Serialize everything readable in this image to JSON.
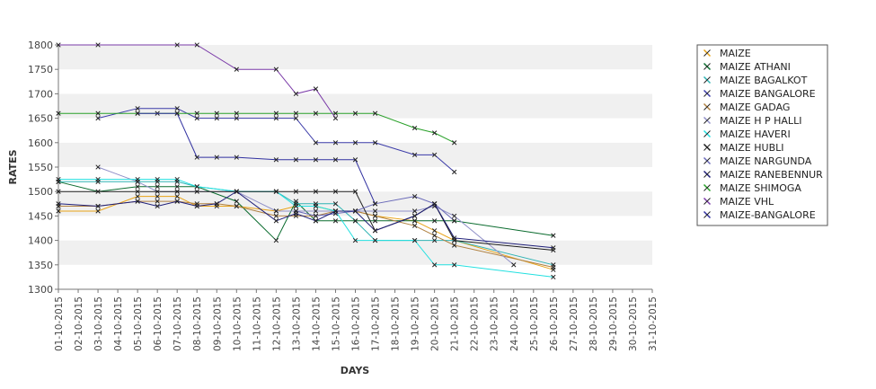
{
  "chart_data": {
    "type": "line",
    "title": "",
    "xlabel": "DAYS",
    "ylabel": "RATES",
    "ylim": [
      1300,
      1800
    ],
    "yticks": [
      1300,
      1350,
      1400,
      1450,
      1500,
      1550,
      1600,
      1650,
      1700,
      1750,
      1800
    ],
    "grid": "horizontal bands",
    "legend_position": "right",
    "categories": [
      "01-10-2015",
      "02-10-2015",
      "03-10-2015",
      "04-10-2015",
      "05-10-2015",
      "06-10-2015",
      "07-10-2015",
      "08-10-2015",
      "09-10-2015",
      "10-10-2015",
      "11-10-2015",
      "12-10-2015",
      "13-10-2015",
      "14-10-2015",
      "15-10-2015",
      "16-10-2015",
      "17-10-2015",
      "18-10-2015",
      "19-10-2015",
      "20-10-2015",
      "21-10-2015",
      "22-10-2015",
      "23-10-2015",
      "24-10-2015",
      "25-10-2015",
      "26-10-2015",
      "27-10-2015",
      "28-10-2015",
      "29-10-2015",
      "30-10-2015",
      "31-10-2015"
    ],
    "series": [
      {
        "name": "MAIZE",
        "color": "#e8a317",
        "points": [
          [
            1,
            1460
          ],
          [
            3,
            1460
          ],
          [
            5,
            1490
          ],
          [
            6,
            1490
          ],
          [
            7,
            1490
          ],
          [
            8,
            1470
          ],
          [
            9,
            1470
          ],
          [
            10,
            1470
          ],
          [
            12,
            1460
          ],
          [
            13,
            1470
          ],
          [
            14,
            1470
          ],
          [
            15,
            1460
          ],
          [
            16,
            1460
          ],
          [
            17,
            1450
          ],
          [
            19,
            1440
          ],
          [
            20,
            1420
          ],
          [
            21,
            1400
          ],
          [
            26,
            1340
          ]
        ]
      },
      {
        "name": "MAIZE ATHANI",
        "color": "#0a6b2e",
        "points": [
          [
            1,
            1520
          ],
          [
            3,
            1500
          ],
          [
            5,
            1510
          ],
          [
            6,
            1510
          ],
          [
            7,
            1510
          ],
          [
            8,
            1510
          ],
          [
            10,
            1480
          ],
          [
            12,
            1400
          ],
          [
            13,
            1480
          ],
          [
            14,
            1440
          ],
          [
            15,
            1440
          ],
          [
            16,
            1440
          ],
          [
            17,
            1440
          ],
          [
            19,
            1440
          ],
          [
            20,
            1440
          ],
          [
            21,
            1440
          ],
          [
            26,
            1410
          ]
        ]
      },
      {
        "name": "MAIZE BAGALKOT",
        "color": "#2fb3b3",
        "points": [
          [
            1,
            1520
          ],
          [
            3,
            1520
          ],
          [
            5,
            1520
          ],
          [
            6,
            1520
          ],
          [
            7,
            1520
          ],
          [
            8,
            1510
          ],
          [
            10,
            1500
          ],
          [
            12,
            1500
          ],
          [
            13,
            1475
          ],
          [
            14,
            1475
          ],
          [
            15,
            1475
          ],
          [
            16,
            1440
          ],
          [
            17,
            1400
          ],
          [
            19,
            1400
          ],
          [
            20,
            1400
          ],
          [
            21,
            1400
          ],
          [
            26,
            1350
          ]
        ]
      },
      {
        "name": "MAIZE BANGALORE",
        "color": "#3a3aa8",
        "points": [
          [
            3,
            1650
          ],
          [
            5,
            1670
          ],
          [
            7,
            1670
          ],
          [
            8,
            1650
          ],
          [
            9,
            1650
          ],
          [
            10,
            1650
          ],
          [
            12,
            1650
          ],
          [
            13,
            1650
          ],
          [
            14,
            1600
          ],
          [
            15,
            1600
          ],
          [
            16,
            1600
          ],
          [
            17,
            1600
          ],
          [
            19,
            1575
          ],
          [
            20,
            1575
          ],
          [
            21,
            1540
          ]
        ]
      },
      {
        "name": "MAIZE GADAG",
        "color": "#b08040",
        "points": [
          [
            1,
            1470
          ],
          [
            3,
            1470
          ],
          [
            5,
            1480
          ],
          [
            6,
            1480
          ],
          [
            7,
            1480
          ],
          [
            8,
            1475
          ],
          [
            9,
            1475
          ],
          [
            10,
            1470
          ],
          [
            12,
            1450
          ],
          [
            13,
            1450
          ],
          [
            14,
            1450
          ],
          [
            15,
            1460
          ],
          [
            16,
            1460
          ],
          [
            17,
            1450
          ],
          [
            19,
            1430
          ],
          [
            20,
            1410
          ],
          [
            21,
            1390
          ],
          [
            26,
            1345
          ]
        ]
      },
      {
        "name": "MAIZE H P HALLI",
        "color": "#9090c8",
        "points": [
          [
            3,
            1550
          ],
          [
            5,
            1520
          ],
          [
            6,
            1500
          ],
          [
            7,
            1500
          ],
          [
            8,
            1500
          ],
          [
            10,
            1500
          ],
          [
            12,
            1460
          ],
          [
            13,
            1460
          ],
          [
            14,
            1460
          ],
          [
            15,
            1460
          ],
          [
            16,
            1460
          ],
          [
            17,
            1460
          ],
          [
            19,
            1460
          ],
          [
            20,
            1470
          ],
          [
            21,
            1450
          ],
          [
            24,
            1350
          ]
        ]
      },
      {
        "name": "MAIZE HAVERI",
        "color": "#22e0e0",
        "points": [
          [
            1,
            1525
          ],
          [
            3,
            1525
          ],
          [
            5,
            1525
          ],
          [
            6,
            1525
          ],
          [
            7,
            1525
          ],
          [
            8,
            1510
          ],
          [
            10,
            1500
          ],
          [
            12,
            1500
          ],
          [
            13,
            1470
          ],
          [
            14,
            1470
          ],
          [
            15,
            1460
          ],
          [
            16,
            1400
          ],
          [
            17,
            1400
          ],
          [
            19,
            1400
          ],
          [
            20,
            1350
          ],
          [
            21,
            1350
          ],
          [
            26,
            1325
          ]
        ]
      },
      {
        "name": "MAIZE HUBLI",
        "color": "#1a1a1a",
        "points": [
          [
            1,
            1500
          ],
          [
            5,
            1500
          ],
          [
            7,
            1500
          ],
          [
            10,
            1500
          ],
          [
            12,
            1500
          ],
          [
            13,
            1500
          ],
          [
            14,
            1500
          ],
          [
            15,
            1500
          ],
          [
            16,
            1500
          ],
          [
            17,
            1420
          ],
          [
            19,
            1450
          ],
          [
            20,
            1475
          ],
          [
            21,
            1400
          ],
          [
            26,
            1380
          ]
        ]
      },
      {
        "name": "MAIZE NARGUNDA",
        "color": "#6868b8",
        "points": [
          [
            13,
            1460
          ],
          [
            14,
            1450
          ],
          [
            15,
            1455
          ],
          [
            16,
            1460
          ],
          [
            17,
            1475
          ],
          [
            19,
            1490
          ],
          [
            20,
            1475
          ],
          [
            21,
            1440
          ]
        ]
      },
      {
        "name": "MAIZE RANEBENNUR",
        "color": "#1e1e78",
        "points": [
          [
            1,
            1475
          ],
          [
            3,
            1470
          ],
          [
            5,
            1480
          ],
          [
            6,
            1470
          ],
          [
            7,
            1480
          ],
          [
            8,
            1470
          ],
          [
            9,
            1475
          ],
          [
            10,
            1500
          ],
          [
            12,
            1440
          ],
          [
            13,
            1455
          ],
          [
            14,
            1440
          ],
          [
            15,
            1460
          ],
          [
            16,
            1460
          ],
          [
            17,
            1420
          ],
          [
            19,
            1450
          ],
          [
            20,
            1475
          ],
          [
            21,
            1405
          ],
          [
            26,
            1385
          ]
        ]
      },
      {
        "name": "MAIZE SHIMOGA",
        "color": "#28a028",
        "points": [
          [
            1,
            1660
          ],
          [
            3,
            1660
          ],
          [
            5,
            1660
          ],
          [
            6,
            1660
          ],
          [
            7,
            1660
          ],
          [
            8,
            1660
          ],
          [
            9,
            1660
          ],
          [
            10,
            1660
          ],
          [
            12,
            1660
          ],
          [
            13,
            1660
          ],
          [
            14,
            1660
          ],
          [
            15,
            1660
          ],
          [
            16,
            1660
          ],
          [
            17,
            1660
          ],
          [
            19,
            1630
          ],
          [
            20,
            1620
          ],
          [
            21,
            1600
          ]
        ]
      },
      {
        "name": "MAIZE VHL",
        "color": "#7a3aa8",
        "points": [
          [
            1,
            1800
          ],
          [
            3,
            1800
          ],
          [
            7,
            1800
          ],
          [
            8,
            1800
          ],
          [
            10,
            1750
          ],
          [
            12,
            1750
          ],
          [
            13,
            1700
          ],
          [
            14,
            1710
          ],
          [
            15,
            1650
          ]
        ]
      },
      {
        "name": "MAIZE-BANGALORE",
        "color": "#3030a0",
        "points": [
          [
            5,
            1660
          ],
          [
            7,
            1660
          ],
          [
            8,
            1570
          ],
          [
            9,
            1570
          ],
          [
            10,
            1570
          ],
          [
            12,
            1565
          ],
          [
            13,
            1565
          ],
          [
            14,
            1565
          ],
          [
            15,
            1565
          ],
          [
            16,
            1565
          ],
          [
            17,
            1475
          ]
        ]
      }
    ]
  }
}
